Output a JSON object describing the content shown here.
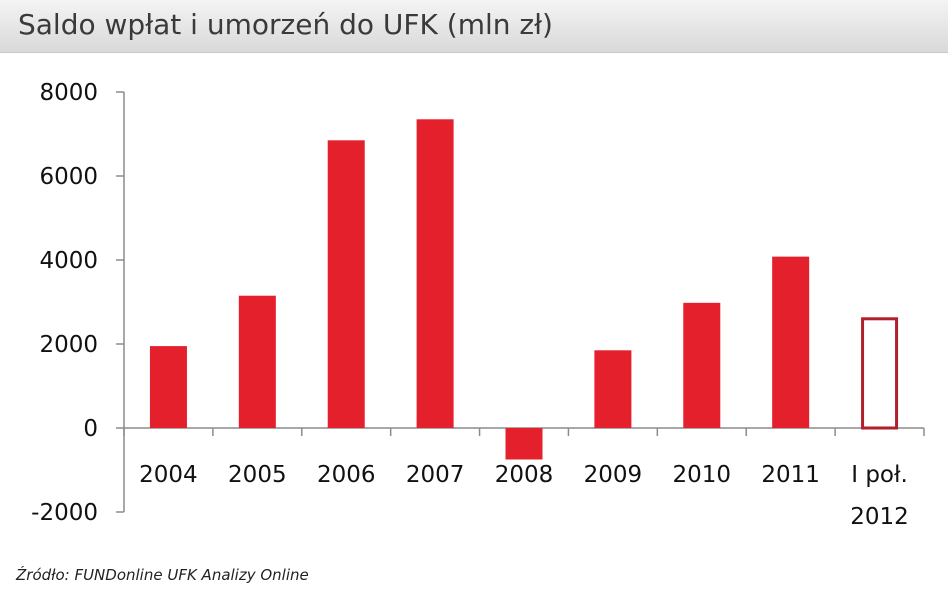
{
  "header": {
    "title": "Saldo wpłat i umorzeń do UFK (mln zł)"
  },
  "chart_data": {
    "type": "bar",
    "categories": [
      "2004",
      "2005",
      "2006",
      "2007",
      "2008",
      "2009",
      "2010",
      "2011",
      "I poł. 2012"
    ],
    "category_lines": [
      [
        "2004"
      ],
      [
        "2005"
      ],
      [
        "2006"
      ],
      [
        "2007"
      ],
      [
        "2008"
      ],
      [
        "2009"
      ],
      [
        "2010"
      ],
      [
        "2011"
      ],
      [
        "I poł.",
        "2012"
      ]
    ],
    "values": [
      1950,
      3150,
      6850,
      7350,
      -750,
      1850,
      2980,
      4080,
      2600
    ],
    "styles": [
      "solid",
      "solid",
      "solid",
      "solid",
      "solid",
      "solid",
      "solid",
      "solid",
      "outline"
    ],
    "y_ticks": [
      8000,
      6000,
      4000,
      2000,
      0,
      -2000
    ],
    "ylim": [
      -2000,
      8000
    ],
    "title": "Saldo wpłat i umorzeń do UFK (mln zł)",
    "bar_color": "#e3202b",
    "outline_color": "#b0202b",
    "grid": false
  },
  "footer": {
    "source": "Źródło: FUNDonline UFK Analizy Online"
  }
}
